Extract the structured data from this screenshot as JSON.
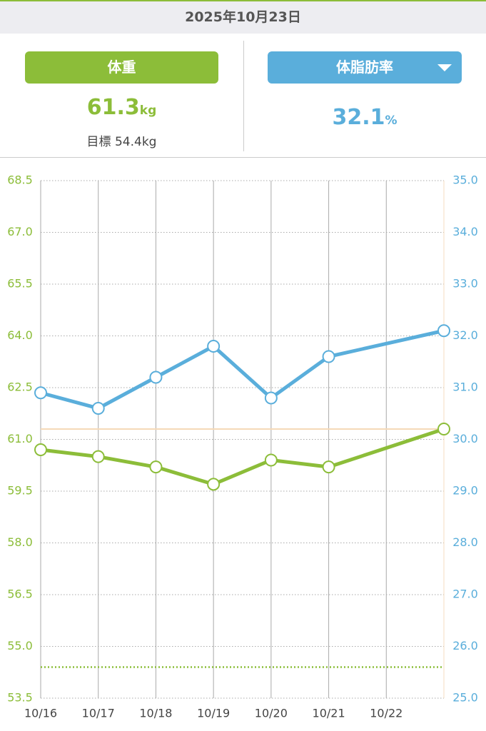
{
  "header": {
    "date": "2025年10月23日"
  },
  "weight": {
    "label": "体重",
    "value": 61.3,
    "unit": "kg",
    "goal_label": "目標",
    "goal": 54.4,
    "goal_unit": "kg"
  },
  "body_fat": {
    "label": "体脂肪率",
    "value": 32.1,
    "unit": "%"
  },
  "chart_data": {
    "type": "line",
    "categories": [
      "10/16",
      "10/17",
      "10/18",
      "10/19",
      "10/20",
      "10/21",
      "10/22",
      null
    ],
    "series": [
      {
        "name": "体重",
        "color": "#8cbd39",
        "values": [
          60.7,
          60.5,
          60.2,
          59.7,
          60.4,
          60.2,
          null,
          61.3
        ]
      },
      {
        "name": "体脂肪率",
        "color": "#5aaedb",
        "axis": "y2",
        "values": [
          30.9,
          30.6,
          31.2,
          31.8,
          30.8,
          31.6,
          null,
          32.1
        ]
      }
    ],
    "ylim": [
      53.5,
      68.5
    ],
    "yticks": [
      53.5,
      {
        "value": 55,
        "label": "55.0"
      },
      56.5,
      {
        "value": 58,
        "label": "58.0"
      },
      59.5,
      {
        "value": 61,
        "label": "61.0"
      },
      62.5,
      {
        "value": 64,
        "label": "64.0"
      },
      65.5,
      {
        "value": 67,
        "label": "67.0"
      },
      68.5
    ],
    "y2lim": [
      25,
      35
    ],
    "y2ticks": [
      {
        "value": 25,
        "label": "25.0"
      },
      {
        "value": 26,
        "label": "26.0"
      },
      {
        "value": 27,
        "label": "27.0"
      },
      {
        "value": 28,
        "label": "28.0"
      },
      {
        "value": 29,
        "label": "29.0"
      },
      {
        "value": 30,
        "label": "30.0"
      },
      {
        "value": 31,
        "label": "31.0"
      },
      {
        "value": 32,
        "label": "32.0"
      },
      {
        "value": 33,
        "label": "33.0"
      },
      {
        "value": 34,
        "label": "34.0"
      },
      {
        "value": 35,
        "label": "35.0"
      }
    ],
    "grid": true
  }
}
